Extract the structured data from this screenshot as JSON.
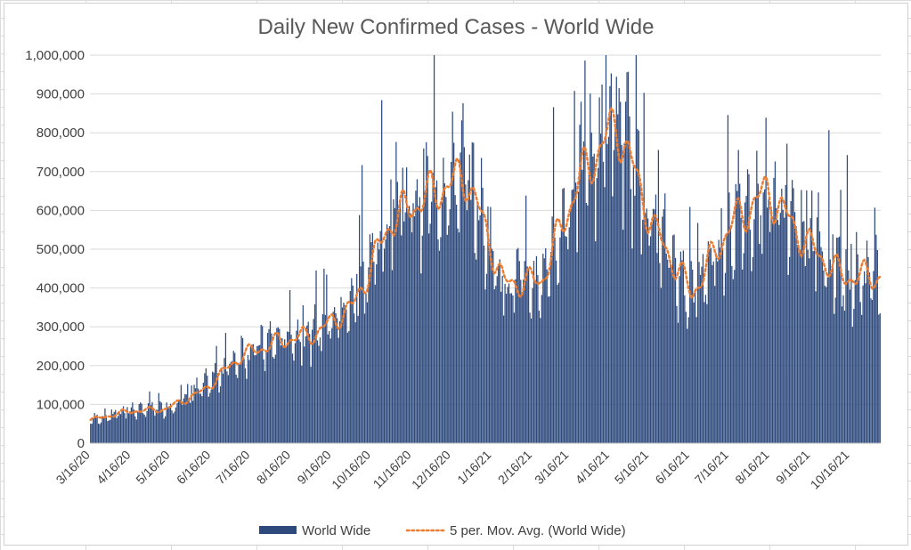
{
  "chart_data": {
    "type": "bar",
    "title": "Daily New Confirmed Cases - World Wide",
    "xlabel": "",
    "ylabel": "",
    "ylim": [
      0,
      1000000
    ],
    "y_ticks": [
      "0",
      "100,000",
      "200,000",
      "300,000",
      "400,000",
      "500,000",
      "600,000",
      "700,000",
      "800,000",
      "900,000",
      "1,000,000"
    ],
    "x_tick_labels": [
      "3/16/20",
      "4/16/20",
      "5/16/20",
      "6/16/20",
      "7/16/20",
      "8/16/20",
      "9/16/20",
      "10/16/20",
      "11/16/20",
      "12/16/20",
      "1/16/21",
      "2/16/21",
      "3/16/21",
      "4/16/21",
      "5/16/21",
      "6/16/21",
      "7/16/21",
      "8/16/21",
      "9/16/21",
      "10/16/21"
    ],
    "x_start": "3/16/20",
    "x_end": "11/8/21",
    "series": [
      {
        "name": "World Wide",
        "kind": "bar",
        "color": "#2e4a7d",
        "monthly_values": [
          60000,
          82000,
          90000,
          140000,
          230000,
          265000,
          285000,
          360000,
          580000,
          640000,
          690000,
          410000,
          420000,
          680000,
          830000,
          550000,
          380000,
          560000,
          650000,
          520000,
          430000,
          430000
        ]
      },
      {
        "name": "5 per. Mov. Avg. (World Wide)",
        "kind": "line",
        "style": "dotted",
        "color": "#ed7d31",
        "monthly_values": [
          60000,
          82000,
          88000,
          135000,
          225000,
          262000,
          283000,
          355000,
          575000,
          640000,
          690000,
          410000,
          420000,
          680000,
          825000,
          550000,
          385000,
          560000,
          650000,
          520000,
          430000,
          430000
        ]
      }
    ],
    "grid": true,
    "legend_position": "bottom"
  }
}
